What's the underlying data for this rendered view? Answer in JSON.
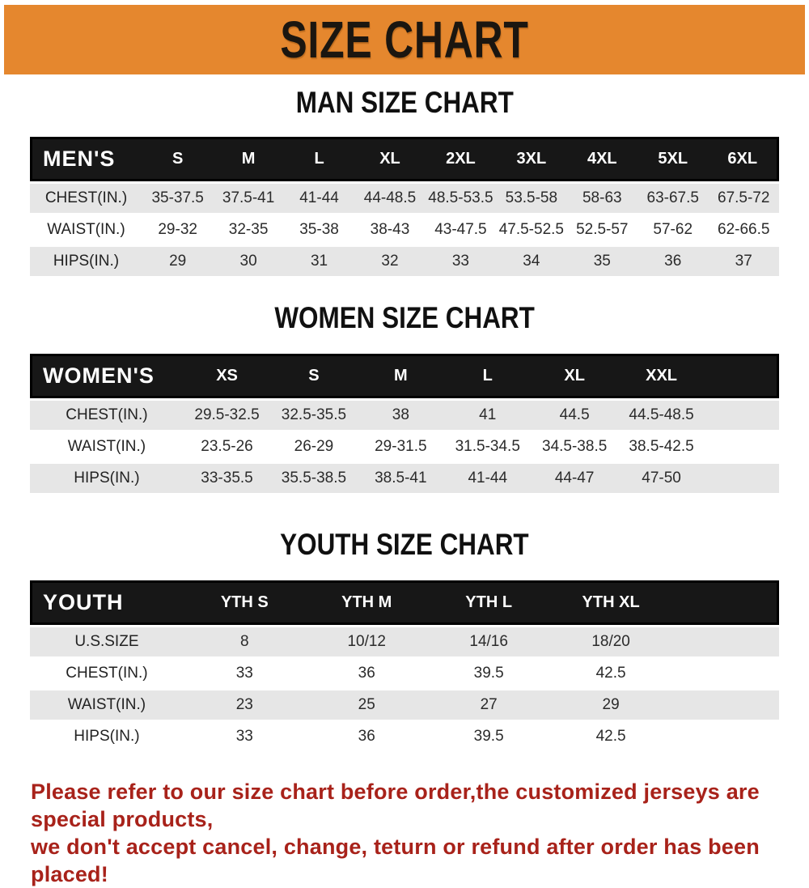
{
  "banner": {
    "title": "SIZE CHART"
  },
  "sections": [
    {
      "id": "men",
      "heading": "MAN SIZE CHART",
      "header_label": "MEN'S",
      "columns": [
        "S",
        "M",
        "L",
        "XL",
        "2XL",
        "3XL",
        "4XL",
        "5XL",
        "6XL"
      ],
      "trailing_filler": false,
      "rows": [
        {
          "label": "CHEST(IN.)",
          "values": [
            "35-37.5",
            "37.5-41",
            "41-44",
            "44-48.5",
            "48.5-53.5",
            "53.5-58",
            "58-63",
            "63-67.5",
            "67.5-72"
          ]
        },
        {
          "label": "WAIST(IN.)",
          "values": [
            "29-32",
            "32-35",
            "35-38",
            "38-43",
            "43-47.5",
            "47.5-52.5",
            "52.5-57",
            "57-62",
            "62-66.5"
          ]
        },
        {
          "label": "HIPS(IN.)",
          "values": [
            "29",
            "30",
            "31",
            "32",
            "33",
            "34",
            "35",
            "36",
            "37"
          ]
        }
      ]
    },
    {
      "id": "women",
      "heading": "WOMEN SIZE CHART",
      "header_label": "WOMEN'S",
      "columns": [
        "XS",
        "S",
        "M",
        "L",
        "XL",
        "XXL"
      ],
      "trailing_filler": true,
      "rows": [
        {
          "label": "CHEST(IN.)",
          "values": [
            "29.5-32.5",
            "32.5-35.5",
            "38",
            "41",
            "44.5",
            "44.5-48.5"
          ]
        },
        {
          "label": "WAIST(IN.)",
          "values": [
            "23.5-26",
            "26-29",
            "29-31.5",
            "31.5-34.5",
            "34.5-38.5",
            "38.5-42.5"
          ]
        },
        {
          "label": "HIPS(IN.)",
          "values": [
            "33-35.5",
            "35.5-38.5",
            "38.5-41",
            "41-44",
            "44-47",
            "47-50"
          ]
        }
      ]
    },
    {
      "id": "youth",
      "heading": "YOUTH SIZE CHART",
      "header_label": "YOUTH",
      "columns": [
        "YTH S",
        "YTH M",
        "YTH L",
        "YTH XL"
      ],
      "trailing_filler": true,
      "rows": [
        {
          "label": "U.S.SIZE",
          "values": [
            "8",
            "10/12",
            "14/16",
            "18/20"
          ]
        },
        {
          "label": "CHEST(IN.)",
          "values": [
            "33",
            "36",
            "39.5",
            "42.5"
          ]
        },
        {
          "label": "WAIST(IN.)",
          "values": [
            "23",
            "25",
            "27",
            "29"
          ]
        },
        {
          "label": "HIPS(IN.)",
          "values": [
            "33",
            "36",
            "39.5",
            "42.5"
          ]
        }
      ]
    }
  ],
  "footer": {
    "line1": "Please refer to our size chart before order,the customized jerseys are special products,",
    "line2": "we don't accept cancel, change, teturn or refund after order has been placed!"
  },
  "colors": {
    "banner_bg": "#e5872e",
    "header_bar": "#171717",
    "stripe_gray": "#e6e6e6",
    "footer_text": "#a8221a"
  }
}
